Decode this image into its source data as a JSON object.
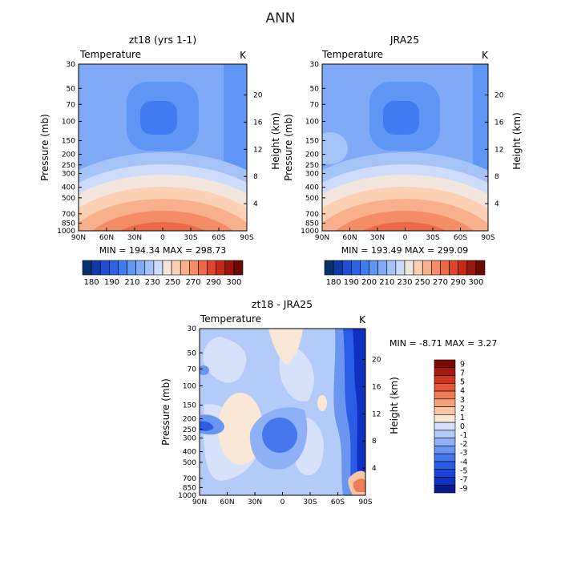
{
  "title": "ANN",
  "colors": {
    "abs_scale": [
      "#08306b",
      "#0d3aa8",
      "#1f4fd0",
      "#2b62e8",
      "#3f7bf2",
      "#5f95f5",
      "#80aaf6",
      "#a6c3f8",
      "#cddcfa",
      "#f2e6dc",
      "#fbd0b4",
      "#f8b08c",
      "#f48c66",
      "#ee6a46",
      "#e0452a",
      "#c42a16",
      "#98160c",
      "#6b0a05"
    ],
    "diff_scale": [
      "#0a1a8c",
      "#1030c0",
      "#1a44d8",
      "#2b5ce6",
      "#4576ee",
      "#6a96f2",
      "#8db0f6",
      "#b3cbf8",
      "#d5e2fa",
      "#fbe7d6",
      "#f8c6a6",
      "#f4a27c",
      "#ef7d56",
      "#e5563a",
      "#cc3420",
      "#a31a10",
      "#7a0a06"
    ]
  },
  "chart_data": [
    {
      "type": "heatmap",
      "title": "zt18 (yrs 1-1)",
      "subtitle_left": "Temperature",
      "subtitle_right": "K",
      "ylabel": "Pressure (mb)",
      "ylabel_right": "Height (km)",
      "x": [
        -90,
        90
      ],
      "x_ticks": [
        "90N",
        "60N",
        "30N",
        "0",
        "30S",
        "60S",
        "90S"
      ],
      "y_ticks": [
        "30",
        "50",
        "70",
        "100",
        "150",
        "200",
        "250",
        "300",
        "400",
        "500",
        "700",
        "850",
        "1000"
      ],
      "y_right_ticks": [
        "20",
        "16",
        "12",
        "8",
        "4"
      ],
      "stats": "MIN = 194.34   MAX = 298.73",
      "min": 194.34,
      "max": 298.73,
      "levels": [
        "180",
        "190",
        "200",
        "210",
        "220",
        "230",
        "240",
        "250",
        "260",
        "270",
        "280",
        "290",
        "300"
      ],
      "level_labels": [
        "180",
        "190",
        "210",
        "230",
        "250",
        "270",
        "290",
        "300"
      ]
    },
    {
      "type": "heatmap",
      "title": "JRA25",
      "subtitle_left": "Temperature",
      "subtitle_right": "K",
      "ylabel": "Pressure (mb)",
      "ylabel_right": "Height (km)",
      "x": [
        -90,
        90
      ],
      "x_ticks": [
        "90N",
        "60N",
        "30N",
        "0",
        "30S",
        "60S",
        "90S"
      ],
      "y_ticks": [
        "30",
        "50",
        "70",
        "100",
        "150",
        "200",
        "250",
        "300",
        "400",
        "500",
        "700",
        "850",
        "1000"
      ],
      "y_right_ticks": [
        "20",
        "16",
        "12",
        "8",
        "4"
      ],
      "stats": "MIN = 193.49   MAX = 299.09",
      "min": 193.49,
      "max": 299.09,
      "level_labels": [
        "180",
        "190",
        "200",
        "210",
        "230",
        "250",
        "270",
        "290",
        "300"
      ]
    },
    {
      "type": "heatmap",
      "title": "zt18 - JRA25",
      "subtitle_left": "Temperature",
      "subtitle_right": "K",
      "ylabel": "Pressure (mb)",
      "ylabel_right": "Height (km)",
      "x_ticks": [
        "90N",
        "60N",
        "30N",
        "0",
        "30S",
        "60S",
        "90S"
      ],
      "y_ticks": [
        "30",
        "50",
        "70",
        "100",
        "150",
        "200",
        "250",
        "300",
        "400",
        "500",
        "700",
        "850",
        "1000"
      ],
      "y_right_ticks": [
        "20",
        "16",
        "12",
        "8",
        "4"
      ],
      "stats": "MIN =   -8.71   MAX =    3.27",
      "min": -8.71,
      "max": 3.27,
      "level_labels": [
        "9",
        "7",
        "5",
        "4",
        "3",
        "2",
        "1",
        "0",
        "-1",
        "-2",
        "-3",
        "-4",
        "-5",
        "-7",
        "-9"
      ]
    }
  ]
}
